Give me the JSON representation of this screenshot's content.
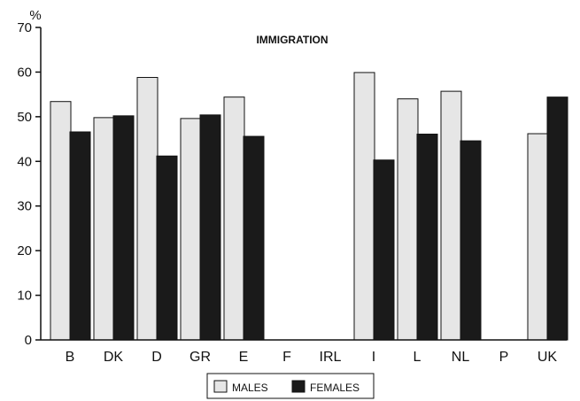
{
  "chart_data": {
    "type": "bar",
    "title": "IMMIGRATION",
    "ylabel": "%",
    "xlabel": "",
    "ylim": [
      0,
      70
    ],
    "yticks": [
      0,
      10,
      20,
      30,
      40,
      50,
      60,
      70
    ],
    "grid": false,
    "legend_position": "bottom-center",
    "categories": [
      "B",
      "DK",
      "D",
      "GR",
      "E",
      "F",
      "IRL",
      "I",
      "L",
      "NL",
      "P",
      "UK"
    ],
    "series": [
      {
        "name": "MALES",
        "color": "#e6e6e6",
        "values": [
          53.4,
          49.8,
          58.8,
          49.6,
          54.4,
          null,
          null,
          59.9,
          54.0,
          55.7,
          null,
          46.2
        ]
      },
      {
        "name": "FEMALES",
        "color": "#1a1a1a",
        "values": [
          46.6,
          50.2,
          41.2,
          50.4,
          45.6,
          null,
          null,
          40.3,
          46.1,
          44.6,
          null,
          54.4
        ]
      }
    ]
  }
}
